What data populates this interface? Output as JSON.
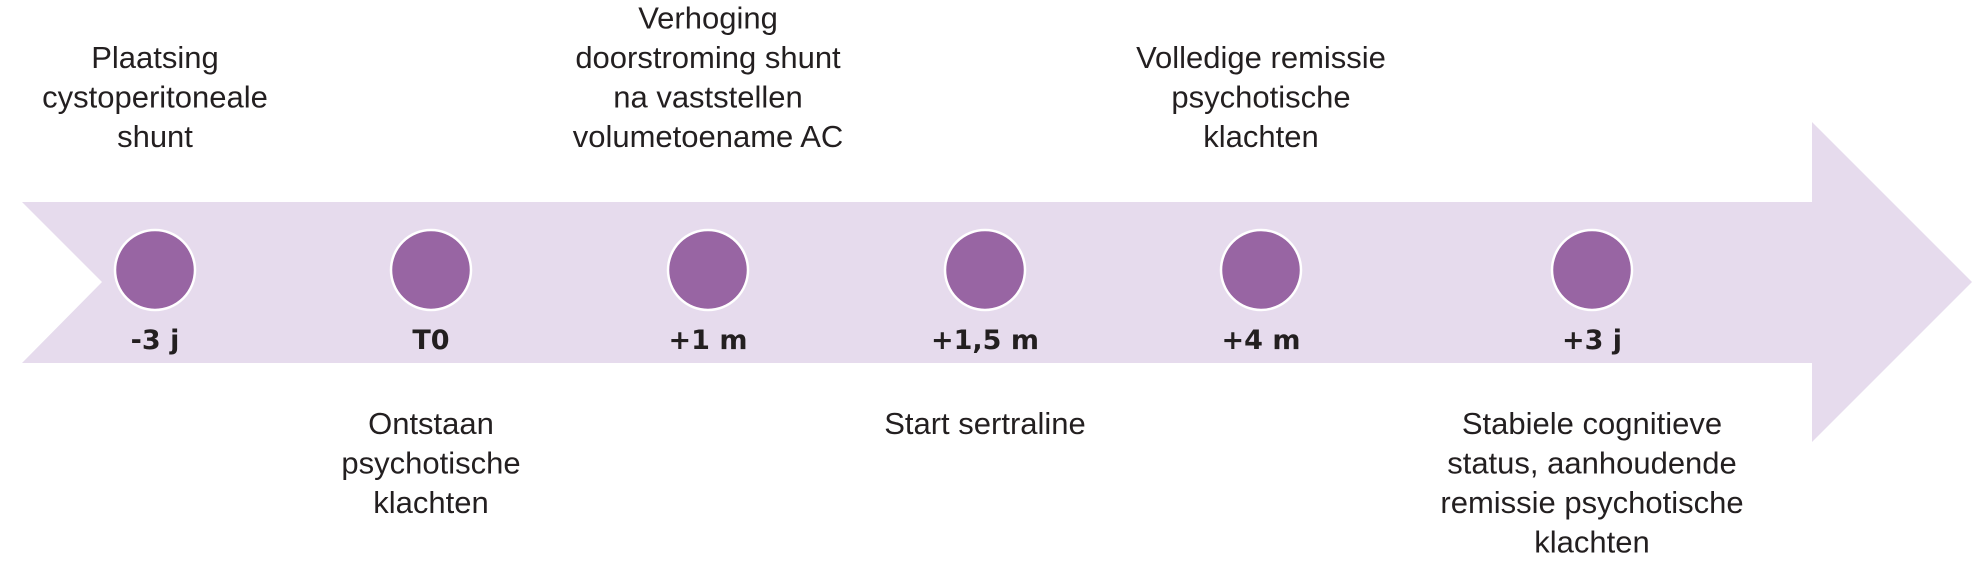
{
  "colors": {
    "band": "#e6dbed",
    "marker": "#9865a3",
    "marker_outline": "#ffffff",
    "text": "#231f20"
  },
  "events": [
    {
      "label": "-3 j",
      "position": "above",
      "lines": [
        "Plaatsing",
        "cystoperitoneale",
        "shunt"
      ]
    },
    {
      "label": "T0",
      "position": "below",
      "lines": [
        "Ontstaan",
        "psychotische",
        "klachten"
      ]
    },
    {
      "label": "+1 m",
      "position": "above",
      "lines": [
        "Verhoging",
        "doorstroming shunt",
        "na vaststellen",
        "volumetoename AC"
      ]
    },
    {
      "label": "+1,5 m",
      "position": "below",
      "lines": [
        "Start sertraline"
      ]
    },
    {
      "label": "+4 m",
      "position": "above",
      "lines": [
        "Volledige remissie",
        "psychotische",
        "klachten"
      ]
    },
    {
      "label": "+3 j",
      "position": "below",
      "lines": [
        "Stabiele cognitieve",
        "status, aanhoudende",
        "remissie psychotische",
        "klachten"
      ]
    }
  ]
}
